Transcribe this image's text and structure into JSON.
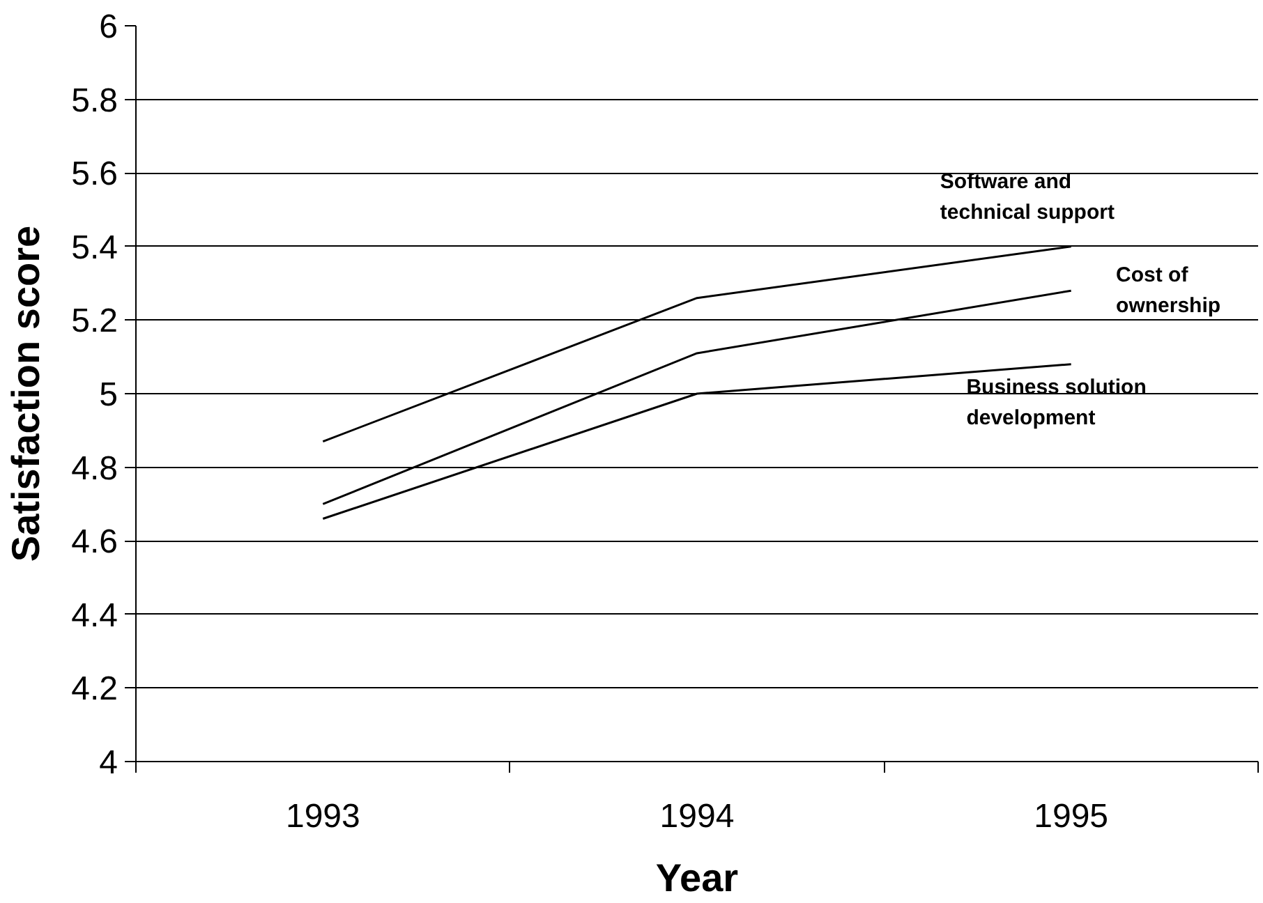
{
  "chart_data": {
    "type": "line",
    "xlabel": "Year",
    "ylabel": "Satisfaction score",
    "categories": [
      "1993",
      "1994",
      "1995"
    ],
    "series": [
      {
        "name": "Software and technical support",
        "color": "#000000",
        "values": [
          4.87,
          5.26,
          5.4
        ]
      },
      {
        "name": "Cost of ownership",
        "color": "#000000",
        "values": [
          4.7,
          5.11,
          5.28
        ]
      },
      {
        "name": "Business solution development",
        "color": "#000000",
        "values": [
          4.66,
          5.0,
          5.08
        ]
      }
    ],
    "ylim": [
      4,
      6
    ],
    "yticks": [
      4,
      4.2,
      4.4,
      4.6,
      4.8,
      5,
      5.2,
      5.4,
      5.6,
      5.8,
      6
    ],
    "grid": "y",
    "marker": "none",
    "line_style": "solid"
  }
}
